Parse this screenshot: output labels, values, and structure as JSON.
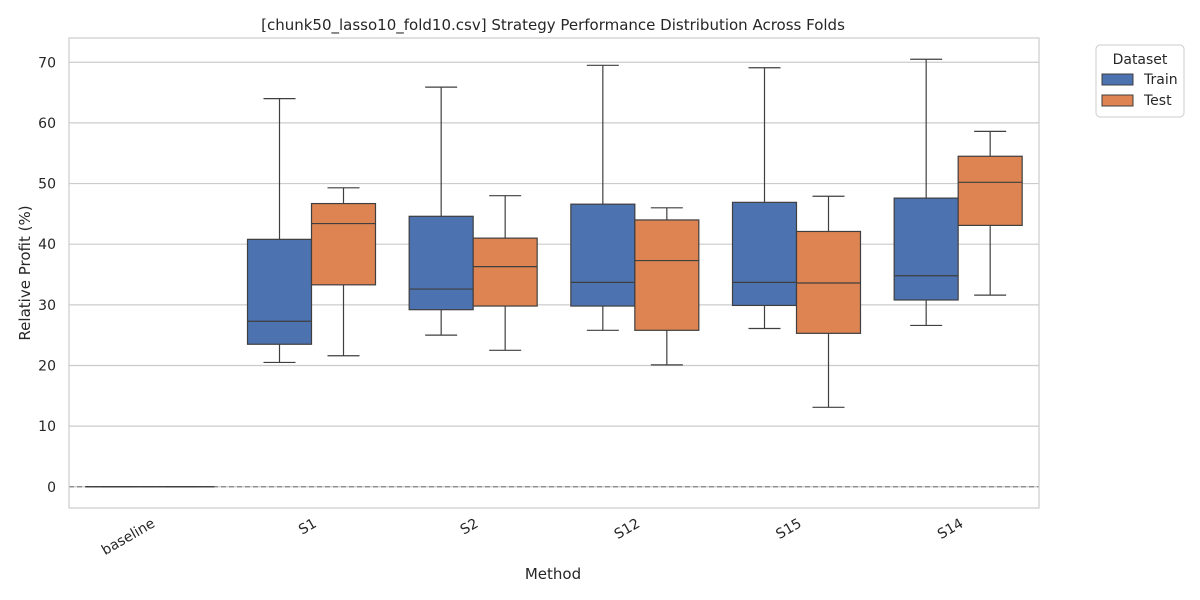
{
  "chart_data": {
    "type": "box",
    "title": "[chunk50_lasso10_fold10.csv] Strategy Performance Distribution Across Folds",
    "xlabel": "Method",
    "ylabel": "Relative Profit (%)",
    "ylim": [
      -3.5,
      74
    ],
    "yticks": [
      0,
      10,
      20,
      30,
      40,
      50,
      60,
      70
    ],
    "grid": "horizontal",
    "reference_line": {
      "y": 0,
      "style": "dashed",
      "color": "#808080"
    },
    "categories": [
      "baseline",
      "S1",
      "S2",
      "S12",
      "S15",
      "S14"
    ],
    "legend": {
      "title": "Dataset",
      "placement": "outside-top-right"
    },
    "series": [
      {
        "name": "Train",
        "color": "#4c72b0",
        "boxes": [
          {
            "whislo": 0,
            "q1": 0,
            "med": 0,
            "q3": 0,
            "whishi": 0
          },
          {
            "whislo": 20.5,
            "q1": 23.5,
            "med": 27.3,
            "q3": 40.8,
            "whishi": 64.0
          },
          {
            "whislo": 25.0,
            "q1": 29.2,
            "med": 32.6,
            "q3": 44.6,
            "whishi": 65.9
          },
          {
            "whislo": 25.8,
            "q1": 29.8,
            "med": 33.7,
            "q3": 46.6,
            "whishi": 69.5
          },
          {
            "whislo": 26.1,
            "q1": 29.9,
            "med": 33.7,
            "q3": 46.9,
            "whishi": 69.1
          },
          {
            "whislo": 26.6,
            "q1": 30.8,
            "med": 34.8,
            "q3": 47.6,
            "whishi": 70.5
          }
        ]
      },
      {
        "name": "Test",
        "color": "#dd8452",
        "boxes": [
          {
            "whislo": 0,
            "q1": 0,
            "med": 0,
            "q3": 0,
            "whishi": 0
          },
          {
            "whislo": 21.6,
            "q1": 33.3,
            "med": 43.4,
            "q3": 46.7,
            "whishi": 49.3
          },
          {
            "whislo": 22.5,
            "q1": 29.8,
            "med": 36.3,
            "q3": 41.0,
            "whishi": 48.0
          },
          {
            "whislo": 20.1,
            "q1": 25.8,
            "med": 37.3,
            "q3": 44.0,
            "whishi": 46.0
          },
          {
            "whislo": 13.1,
            "q1": 25.3,
            "med": 33.6,
            "q3": 42.1,
            "whishi": 47.9
          },
          {
            "whislo": 31.6,
            "q1": 43.1,
            "med": 50.2,
            "q3": 54.5,
            "whishi": 58.6
          }
        ]
      }
    ]
  }
}
